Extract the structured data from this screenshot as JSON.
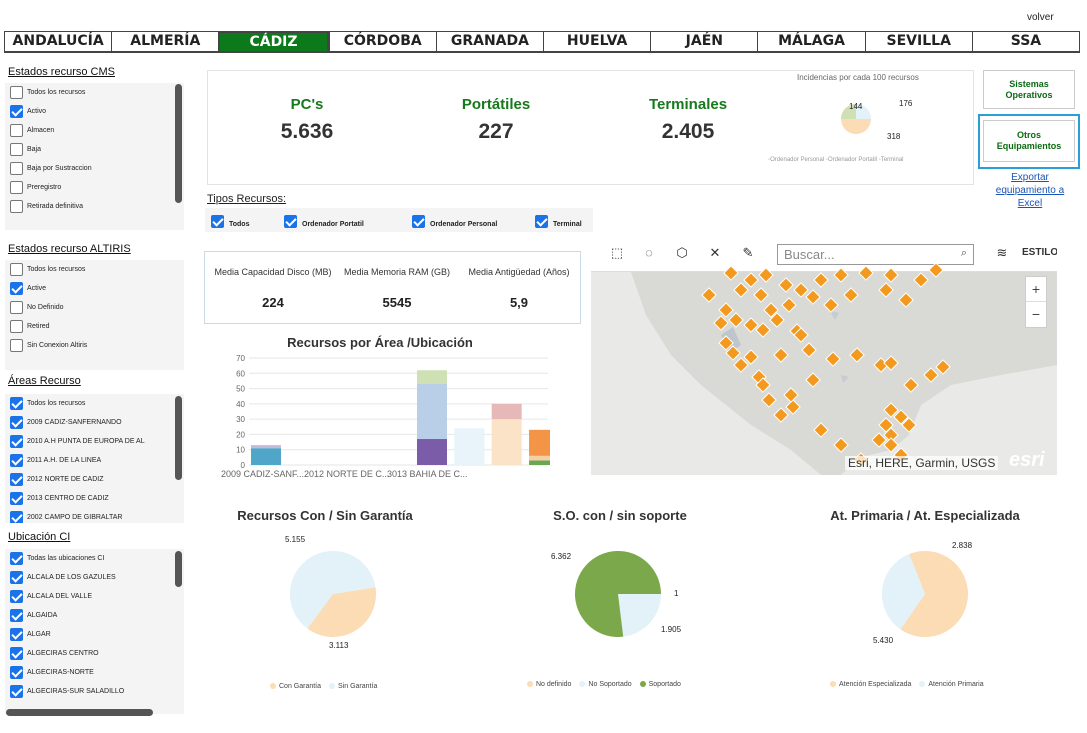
{
  "header": {
    "volver": "volver",
    "tabs": [
      "ANDALUCÍA",
      "ALMERÍA",
      "CÁDIZ",
      "CÓRDOBA",
      "GRANADA",
      "HUELVA",
      "JAÉN",
      "MÁLAGA",
      "SEVILLA",
      "SSA"
    ],
    "active_tab": "CÁDIZ"
  },
  "filters": {
    "cms": {
      "title": "Estados recurso CMS",
      "items": [
        {
          "label": "Todos los recursos",
          "checked": false
        },
        {
          "label": "Activo",
          "checked": true
        },
        {
          "label": "Almacen",
          "checked": false
        },
        {
          "label": "Baja",
          "checked": false
        },
        {
          "label": "Baja por Sustraccion",
          "checked": false
        },
        {
          "label": "Preregistro",
          "checked": false
        },
        {
          "label": "Retirada definitiva",
          "checked": false
        }
      ]
    },
    "altiris": {
      "title": "Estados recurso ALTIRIS",
      "items": [
        {
          "label": "Todos los recursos",
          "checked": false
        },
        {
          "label": "Active",
          "checked": true
        },
        {
          "label": "No Definido",
          "checked": false
        },
        {
          "label": "Retired",
          "checked": false
        },
        {
          "label": "Sin Conexion Altiris",
          "checked": false
        }
      ]
    },
    "areas": {
      "title": "Áreas Recurso",
      "items": [
        {
          "label": "Todos los recursos",
          "checked": true
        },
        {
          "label": "2009 CADIZ-SANFERNANDO",
          "checked": true
        },
        {
          "label": "2010 A.H PUNTA DE EUROPA DE AL",
          "checked": true
        },
        {
          "label": "2011 A.H. DE LA LINEA",
          "checked": true
        },
        {
          "label": "2012 NORTE DE CADIZ",
          "checked": true
        },
        {
          "label": "2013 CENTRO DE CADIZ",
          "checked": true
        },
        {
          "label": "2002 CAMPO DE GIBRALTAR",
          "checked": true
        }
      ]
    },
    "ubicacion": {
      "title": "Ubicación CI",
      "items": [
        {
          "label": "Todas las ubicaciones CI",
          "checked": true
        },
        {
          "label": "ALCALA DE LOS GAZULES",
          "checked": true
        },
        {
          "label": "ALCALA DEL VALLE",
          "checked": true
        },
        {
          "label": "ALGAIDA",
          "checked": true
        },
        {
          "label": "ALGAR",
          "checked": true
        },
        {
          "label": "ALGECIRAS CENTRO",
          "checked": true
        },
        {
          "label": "ALGECIRAS-NORTE",
          "checked": true
        },
        {
          "label": "ALGECIRAS-SUR SALADILLO",
          "checked": true
        }
      ]
    }
  },
  "kpis": {
    "pcs": {
      "label": "PC's",
      "value": "5.636"
    },
    "portatiles": {
      "label": "Portátiles",
      "value": "227"
    },
    "terminales": {
      "label": "Terminales",
      "value": "2.405"
    },
    "incidencias_title": "Incidencias por cada 100 recursos",
    "incidencias_labels": [
      "144",
      "176",
      "318"
    ],
    "incidencias_legend": [
      "Ordenador Personal",
      "Ordenador Portatil",
      "Terminal"
    ]
  },
  "actions": {
    "sistemas": "Sistemas Operativos",
    "otros": "Otros Equipamientos",
    "exportar": "Exportar equipamiento a Excel"
  },
  "tipos": {
    "title": "Tipos Recursos:",
    "items": [
      {
        "label": "Todos",
        "checked": true
      },
      {
        "label": "Ordenador Portatil",
        "checked": true
      },
      {
        "label": "Ordenador Personal",
        "checked": true
      },
      {
        "label": "Terminal",
        "checked": true
      }
    ]
  },
  "medias": {
    "disco": {
      "label": "Media Capacidad Disco (MB)",
      "value": "224"
    },
    "ram": {
      "label": "Media Memoria RAM (GB)",
      "value": "5545"
    },
    "antiguedad": {
      "label": "Media Antigüedad (Años)",
      "value": "5,9"
    }
  },
  "map": {
    "search_placeholder": "Buscar...",
    "estilo": "ESTILO",
    "attribution": "Esri, HERE, Garmin, USGS",
    "brand": "esri",
    "zoom_in": "+",
    "zoom_out": "−",
    "marker_color": "#f39a1e"
  },
  "chart_data": [
    {
      "type": "bar",
      "title": "Recursos por Área /Ubicación",
      "categories": [
        "2009 CADIZ-SANF...",
        "2012 NORTE DE C...",
        "3013 BAHIA DE C..."
      ],
      "ylim": [
        0,
        70
      ],
      "yticks": [
        0,
        10,
        20,
        30,
        40,
        50,
        60,
        70
      ],
      "stacked_groups": [
        {
          "category_index": 0,
          "segments": [
            {
              "value": 11,
              "color": "#4fa6c9"
            },
            {
              "value": 2,
              "color": "#c9b8d6"
            }
          ]
        },
        {
          "category_index": 2,
          "segments": [
            {
              "value": 17,
              "color": "#7b5ca8"
            },
            {
              "value": 36,
              "color": "#b9cfe8"
            },
            {
              "value": 9,
              "color": "#cfe0b5"
            }
          ]
        },
        {
          "category_index": 2.45,
          "segments": [
            {
              "value": 24,
              "color": "#e8f3fa"
            }
          ]
        },
        {
          "category_index": 2.9,
          "segments": [
            {
              "value": 30,
              "color": "#fbe3c8"
            },
            {
              "value": 10,
              "color": "#e6b8b8"
            }
          ]
        },
        {
          "category_index": 3.35,
          "segments": [
            {
              "value": 3,
              "color": "#6aa84f"
            },
            {
              "value": 3,
              "color": "#f6cfa5"
            },
            {
              "value": 17,
              "color": "#f39447"
            }
          ]
        }
      ]
    },
    {
      "type": "pie",
      "title": "Recursos Con / Sin Garantía",
      "slices": [
        {
          "name": "Con Garantía",
          "value": 3113,
          "label": "3.113",
          "color": "#fbdcb5"
        },
        {
          "name": "Sin Garantía",
          "value": 5155,
          "label": "5.155",
          "color": "#e3f1f8"
        }
      ]
    },
    {
      "type": "pie",
      "title": "S.O. con / sin soporte",
      "slices": [
        {
          "name": "No definido",
          "value": 1,
          "label": "1",
          "color": "#fbdcb5"
        },
        {
          "name": "No Soportado",
          "value": 1905,
          "label": "1.905",
          "color": "#e3f1f8"
        },
        {
          "name": "Soportado",
          "value": 6362,
          "label": "6.362",
          "color": "#7aa84a"
        }
      ]
    },
    {
      "type": "pie",
      "title": "At. Primaria / At. Especializada",
      "slices": [
        {
          "name": "Atención Especializada",
          "value": 5430,
          "label": "5.430",
          "color": "#fbdcb5"
        },
        {
          "name": "Atención Primaria",
          "value": 2838,
          "label": "2.838",
          "color": "#e3f1f8"
        }
      ]
    }
  ]
}
